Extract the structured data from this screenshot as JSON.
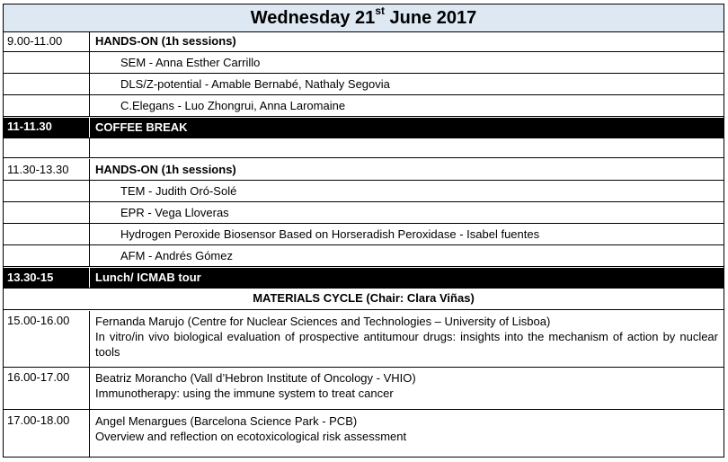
{
  "header": {
    "title_prefix": "Wednesday 21",
    "title_sup": "st",
    "title_suffix": " June 2017"
  },
  "schedule": [
    {
      "time": "9.00-11.00",
      "heading": "HANDS-ON (1h sessions)"
    },
    {
      "item": "SEM - Anna Esther Carrillo"
    },
    {
      "item": "DLS/Z-potential -   Amable Bernabé, Nathaly Segovia"
    },
    {
      "item": "C.Elegans - Luo Zhongrui, Anna Laromaine"
    },
    {
      "time": "11-11.30",
      "heading": "COFFEE BREAK"
    },
    {
      "time": "11.30-13.30",
      "heading": "HANDS-ON (1h sessions)"
    },
    {
      "item": "TEM - Judith Oró-Solé"
    },
    {
      "item": "EPR - Vega Lloveras"
    },
    {
      "item": "Hydrogen Peroxide Biosensor Based on Horseradish Peroxidase - Isabel fuentes"
    },
    {
      "item": "AFM - Andrés Gómez"
    },
    {
      "time": "13.30-15",
      "heading": "Lunch/ ICMAB tour"
    },
    {
      "section": "MATERIALS CYCLE (Chair: Clara Viñas)"
    },
    {
      "time": "15.00-16.00",
      "speaker": "Fernanda Marujo (Centre for Nuclear Sciences and Technologies – University of Lisboa)",
      "talk": "In vitro/in vivo biological evaluation of prospective antitumour drugs: insights into the mechanism of action by nuclear tools"
    },
    {
      "time": "16.00-17.00",
      "speaker": "Beatriz Morancho (Vall d’Hebron Institute of Oncology - VHIO)",
      "talk": "Immunotherapy: using the immune system to treat cancer"
    },
    {
      "time": "17.00-18.00",
      "speaker": "Angel Menargues (Barcelona Science Park - PCB)",
      "talk": "Overview and reflection on ecotoxicological risk assessment"
    }
  ]
}
